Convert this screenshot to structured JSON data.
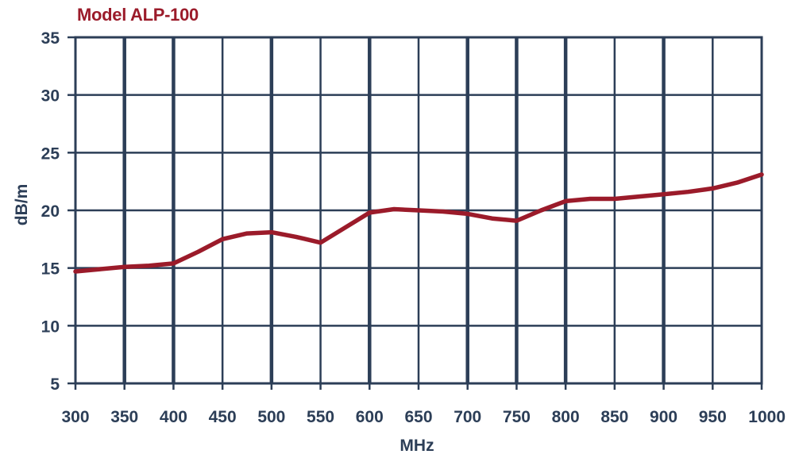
{
  "chart_data": {
    "type": "line",
    "title": "Model ALP-100",
    "xlabel": "MHz",
    "ylabel": "dB/m",
    "xlim": [
      300,
      1000
    ],
    "ylim": [
      5,
      35
    ],
    "x_ticks": [
      300,
      350,
      400,
      450,
      500,
      550,
      600,
      650,
      700,
      750,
      800,
      850,
      900,
      950,
      1000
    ],
    "y_ticks": [
      5,
      10,
      15,
      20,
      25,
      30,
      35
    ],
    "grid": true,
    "colors": {
      "line": "#9b1b2a",
      "grid": "#2c3e57",
      "text": "#2c3e57",
      "title": "#9b1b2a"
    },
    "series": [
      {
        "x": [
          300,
          325,
          350,
          375,
          400,
          425,
          450,
          475,
          500,
          525,
          550,
          575,
          600,
          625,
          650,
          675,
          700,
          725,
          750,
          775,
          800,
          825,
          850,
          875,
          900,
          925,
          950,
          975,
          1000
        ],
        "values": [
          14.7,
          14.9,
          15.1,
          15.2,
          15.4,
          16.4,
          17.5,
          18.0,
          18.1,
          17.7,
          17.2,
          18.5,
          19.8,
          20.1,
          20.0,
          19.9,
          19.7,
          19.3,
          19.1,
          20.0,
          20.8,
          21.0,
          21.0,
          21.2,
          21.4,
          21.6,
          21.9,
          22.4,
          23.1
        ]
      }
    ]
  }
}
